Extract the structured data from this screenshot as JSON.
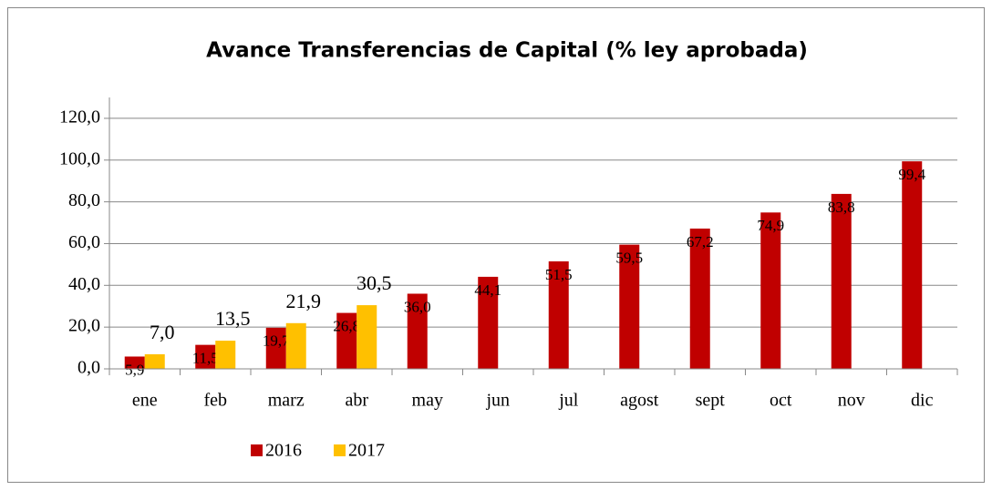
{
  "chart_data": {
    "type": "bar",
    "title": "Avance Transferencias de Capital (% ley aprobada)",
    "categories": [
      "ene",
      "feb",
      "marz",
      "abr",
      "may",
      "jun",
      "jul",
      "agost",
      "sept",
      "oct",
      "nov",
      "dic"
    ],
    "series": [
      {
        "name": "2016",
        "color": "#c00000",
        "values": [
          5.9,
          11.5,
          19.7,
          26.8,
          36.0,
          44.1,
          51.5,
          59.5,
          67.2,
          74.9,
          83.8,
          99.4
        ],
        "value_labels": [
          "5,9",
          "11,5",
          "19,7",
          "26,8",
          "36,0",
          "44,1",
          "51,5",
          "59,5",
          "67,2",
          "74,9",
          "83,8",
          "99,4"
        ]
      },
      {
        "name": "2017",
        "color": "#ffc000",
        "values": [
          7.0,
          13.5,
          21.9,
          30.5,
          null,
          null,
          null,
          null,
          null,
          null,
          null,
          null
        ],
        "value_labels": [
          "7,0",
          "13,5",
          "21,9",
          "30,5",
          null,
          null,
          null,
          null,
          null,
          null,
          null,
          null
        ]
      }
    ],
    "ylim": [
      0,
      130
    ],
    "yticks": [
      {
        "value": 0,
        "label": "0,0"
      },
      {
        "value": 20,
        "label": "20,0"
      },
      {
        "value": 40,
        "label": "40,0"
      },
      {
        "value": 60,
        "label": "60,0"
      },
      {
        "value": 80,
        "label": "80,0"
      },
      {
        "value": 100,
        "label": "100,0"
      },
      {
        "value": 120,
        "label": "120,0"
      }
    ],
    "grid": true,
    "legend": "bottom"
  }
}
